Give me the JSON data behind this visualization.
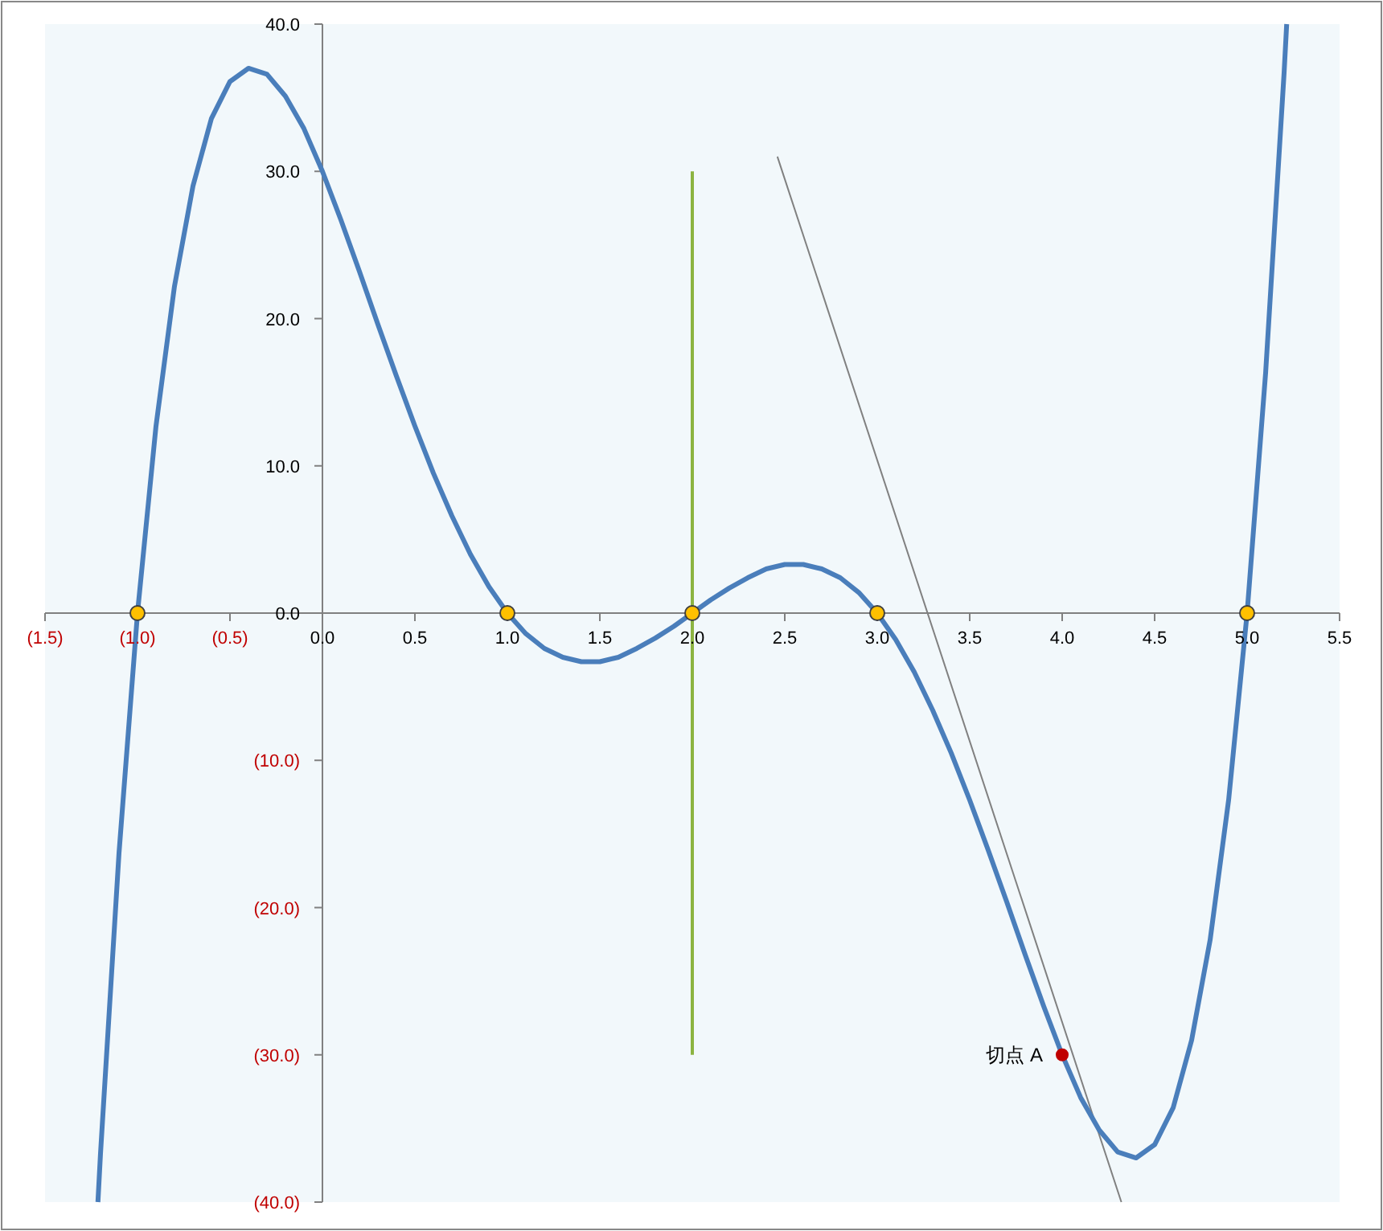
{
  "chart_data": {
    "type": "line",
    "xlim": [
      -1.5,
      5.5
    ],
    "ylim": [
      -40,
      40
    ],
    "xticks": [
      {
        "value": -1.5,
        "label": "(1.5)"
      },
      {
        "value": -1,
        "label": "(1.0)"
      },
      {
        "value": -0.5,
        "label": "(0.5)"
      },
      {
        "value": 0,
        "label": "0.0"
      },
      {
        "value": 0.5,
        "label": "0.5"
      },
      {
        "value": 1,
        "label": "1.0"
      },
      {
        "value": 1.5,
        "label": "1.5"
      },
      {
        "value": 2,
        "label": "2.0"
      },
      {
        "value": 2.5,
        "label": "2.5"
      },
      {
        "value": 3,
        "label": "3.0"
      },
      {
        "value": 3.5,
        "label": "3.5"
      },
      {
        "value": 4,
        "label": "4.0"
      },
      {
        "value": 4.5,
        "label": "4.5"
      },
      {
        "value": 5,
        "label": "5.0"
      },
      {
        "value": 5.5,
        "label": "5.5"
      }
    ],
    "yticks": [
      {
        "value": -40,
        "label": "(40.0)"
      },
      {
        "value": -30,
        "label": "(30.0)"
      },
      {
        "value": -20,
        "label": "(20.0)"
      },
      {
        "value": -10,
        "label": "(10.0)"
      },
      {
        "value": 0,
        "label": "0.0"
      },
      {
        "value": 10,
        "label": "10.0"
      },
      {
        "value": 20,
        "label": "20.0"
      },
      {
        "value": 30,
        "label": "30.0"
      },
      {
        "value": 40,
        "label": "40.0"
      }
    ],
    "series": [
      {
        "color": "#8cb441",
        "x": [
          2,
          2
        ],
        "values": [
          -30,
          30
        ]
      },
      {
        "color": "#808080",
        "x": [
          2.46,
          4.32
        ],
        "values": [
          31,
          -40
        ]
      },
      {
        "color": "#4a7ebb",
        "x": [
          -1.214,
          -1.2,
          -1.1,
          -1.0,
          -0.9,
          -0.8,
          -0.7,
          -0.6,
          -0.5,
          -0.4,
          -0.3,
          -0.2,
          -0.1,
          0,
          0.1,
          0.2,
          0.3,
          0.4,
          0.5,
          0.6,
          0.7,
          0.8,
          0.9,
          1.0,
          1.1,
          1.2,
          1.3,
          1.4,
          1.5,
          1.6,
          1.7,
          1.8,
          1.9,
          2.0,
          2.1,
          2.2,
          2.3,
          2.4,
          2.5,
          2.6,
          2.7,
          2.8,
          2.9,
          3.0,
          3.1,
          3.2,
          3.3,
          3.4,
          3.5,
          3.6,
          3.7,
          3.8,
          3.9,
          4.0,
          4.1,
          4.2,
          4.3,
          4.4,
          4.5,
          4.6,
          4.7,
          4.8,
          4.9,
          5.0,
          5.1,
          5.2,
          5.214
        ],
        "values": [
          -40,
          -36.7,
          -16.3,
          0,
          12.7,
          22.2,
          29.0,
          33.6,
          36.1,
          37.0,
          36.6,
          35.1,
          32.9,
          30,
          26.7,
          23.2,
          19.6,
          16.1,
          12.7,
          9.5,
          6.6,
          4.0,
          1.8,
          0,
          -1.4,
          -2.4,
          -3.0,
          -3.3,
          -3.3,
          -3.0,
          -2.4,
          -1.7,
          -0.9,
          0,
          0.9,
          1.7,
          2.4,
          3.0,
          3.3,
          3.3,
          3.0,
          2.4,
          1.4,
          0,
          -1.8,
          -4.0,
          -6.6,
          -9.5,
          -12.7,
          -16.1,
          -19.6,
          -23.2,
          -26.7,
          -30,
          -32.9,
          -35.1,
          -36.6,
          -37.0,
          -36.1,
          -33.6,
          -29.0,
          -22.2,
          -12.7,
          0,
          16.3,
          36.7,
          40
        ]
      },
      {
        "type": "scatter",
        "color": "#ffc000",
        "marker": "circle",
        "x": [
          -1,
          1,
          2,
          3,
          5
        ],
        "values": [
          0,
          0,
          0,
          0,
          0
        ]
      },
      {
        "type": "scatter",
        "color": "#c00000",
        "marker": "circle",
        "x": [
          4
        ],
        "values": [
          -30
        ]
      }
    ],
    "annotations": [
      {
        "text": "切点 A",
        "x": 4,
        "y": -30
      }
    ]
  }
}
